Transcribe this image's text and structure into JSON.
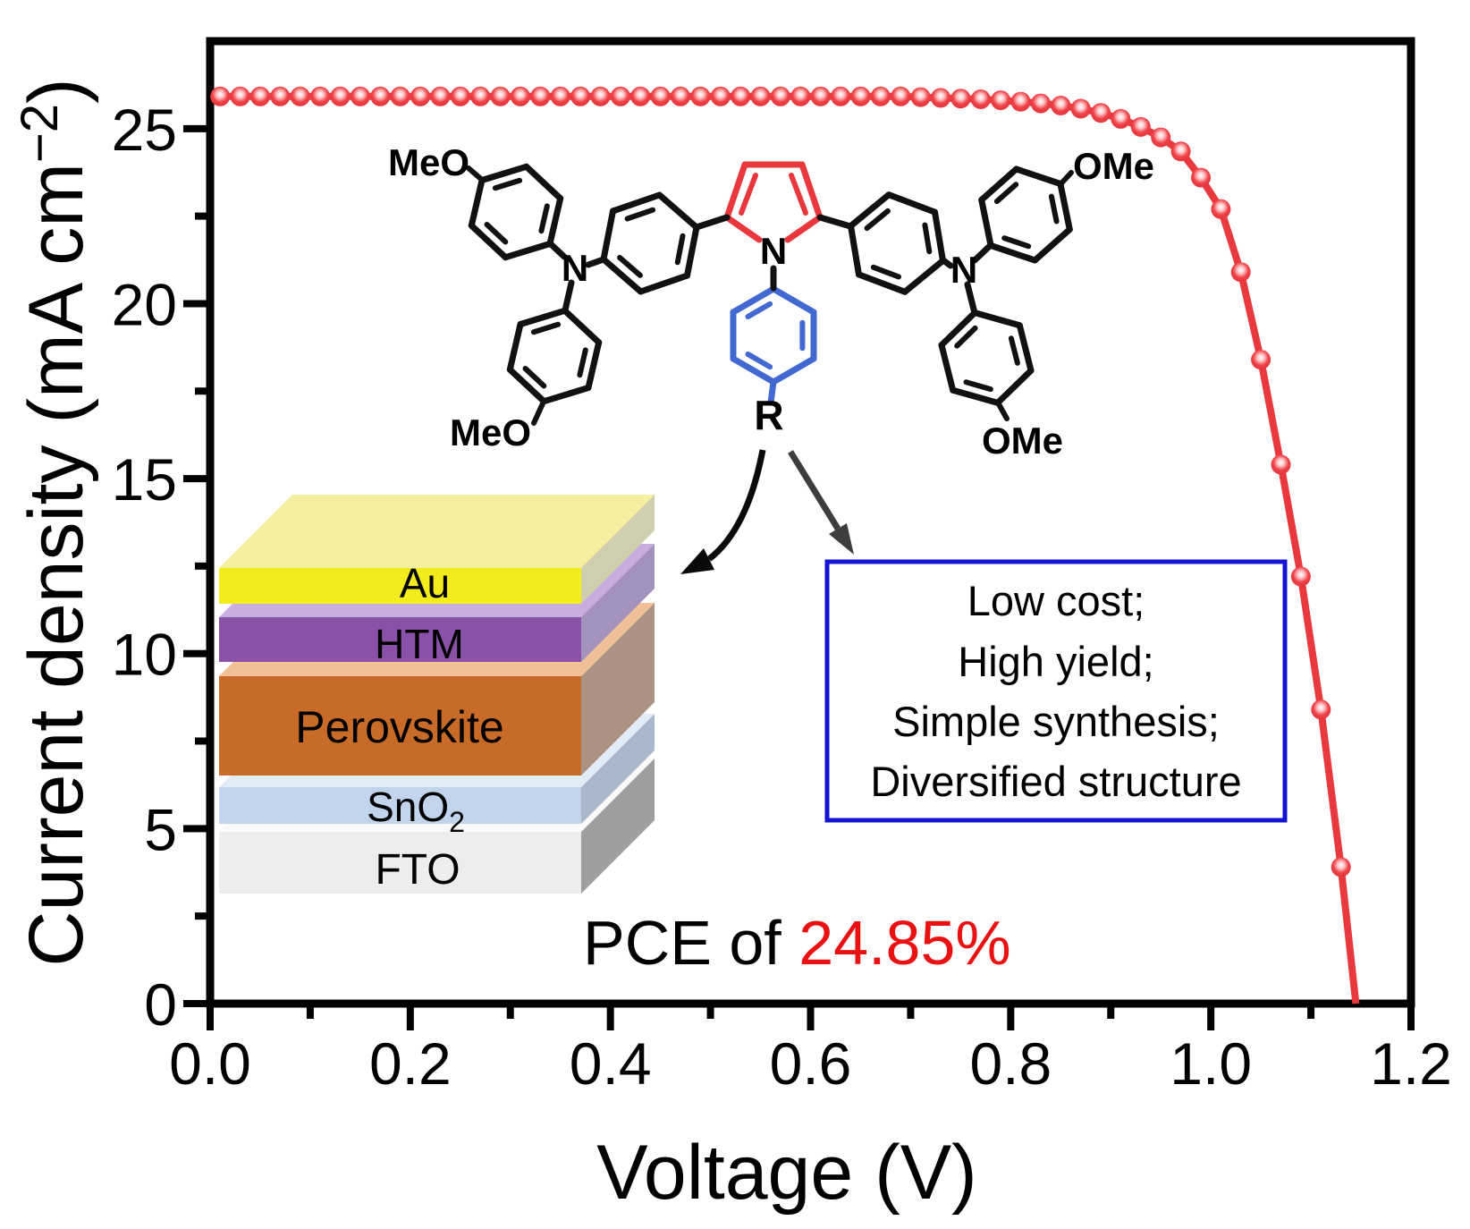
{
  "chart_data": {
    "type": "line",
    "title": "",
    "xlabel": "Voltage (V)",
    "ylabel": {
      "main": "Current density (mA cm",
      "sup": "−2",
      "close": ")"
    },
    "xlim": [
      0,
      1.2
    ],
    "ylim": [
      0,
      27.5
    ],
    "grid": false,
    "x_tick_labels": [
      "0.0",
      "0.2",
      "0.4",
      "0.6",
      "0.8",
      "1.0",
      "1.2"
    ],
    "x_tick_values": [
      0,
      0.2,
      0.4,
      0.6,
      0.8,
      1.0,
      1.2
    ],
    "x_minor_tick_values": [
      0.1,
      0.3,
      0.5,
      0.7,
      0.9,
      1.1
    ],
    "y_tick_labels": [
      "0",
      "5",
      "10",
      "15",
      "20",
      "25"
    ],
    "y_tick_values": [
      0,
      5,
      10,
      15,
      20,
      25
    ],
    "y_minor_tick_values": [
      2.5,
      7.5,
      12.5,
      17.5,
      22.5
    ],
    "series": [
      {
        "name": "J-V curve",
        "color": "#e8393e",
        "marker": "sphere",
        "jsc_ma_cm2": 25.92,
        "voc_v": 1.145,
        "points": [
          [
            0.01,
            25.92
          ],
          [
            0.03,
            25.92
          ],
          [
            0.05,
            25.92
          ],
          [
            0.07,
            25.92
          ],
          [
            0.09,
            25.92
          ],
          [
            0.11,
            25.92
          ],
          [
            0.13,
            25.92
          ],
          [
            0.15,
            25.92
          ],
          [
            0.17,
            25.92
          ],
          [
            0.19,
            25.92
          ],
          [
            0.21,
            25.92
          ],
          [
            0.23,
            25.92
          ],
          [
            0.25,
            25.92
          ],
          [
            0.27,
            25.92
          ],
          [
            0.29,
            25.92
          ],
          [
            0.31,
            25.92
          ],
          [
            0.33,
            25.92
          ],
          [
            0.35,
            25.92
          ],
          [
            0.37,
            25.92
          ],
          [
            0.39,
            25.92
          ],
          [
            0.41,
            25.92
          ],
          [
            0.43,
            25.92
          ],
          [
            0.45,
            25.92
          ],
          [
            0.47,
            25.92
          ],
          [
            0.49,
            25.92
          ],
          [
            0.51,
            25.92
          ],
          [
            0.53,
            25.92
          ],
          [
            0.55,
            25.92
          ],
          [
            0.57,
            25.92
          ],
          [
            0.59,
            25.92
          ],
          [
            0.61,
            25.92
          ],
          [
            0.63,
            25.92
          ],
          [
            0.65,
            25.92
          ],
          [
            0.67,
            25.92
          ],
          [
            0.69,
            25.92
          ],
          [
            0.71,
            25.9
          ],
          [
            0.73,
            25.88
          ],
          [
            0.75,
            25.86
          ],
          [
            0.77,
            25.84
          ],
          [
            0.79,
            25.81
          ],
          [
            0.81,
            25.77
          ],
          [
            0.83,
            25.72
          ],
          [
            0.85,
            25.66
          ],
          [
            0.87,
            25.57
          ],
          [
            0.89,
            25.45
          ],
          [
            0.91,
            25.28
          ],
          [
            0.93,
            25.05
          ],
          [
            0.95,
            24.75
          ],
          [
            0.97,
            24.35
          ],
          [
            0.99,
            23.6
          ],
          [
            1.01,
            22.7
          ],
          [
            1.03,
            20.9
          ],
          [
            1.05,
            18.4
          ],
          [
            1.07,
            15.4
          ],
          [
            1.09,
            12.2
          ],
          [
            1.11,
            8.4
          ],
          [
            1.13,
            3.9
          ],
          [
            1.145,
            0.0
          ]
        ]
      }
    ],
    "annotations": {
      "pce_prefix": "PCE of ",
      "pce_value": "24.85%",
      "pce_value_color": "#ea1112"
    }
  },
  "molecule": {
    "labels": {
      "meo_top_left": "MeO",
      "meo_bottom_left": "MeO",
      "ome_top_right": "OMe",
      "ome_bottom_right": "OMe",
      "n_left": "N",
      "n_right": "N",
      "n_pyrrole": "N",
      "r_group": "R"
    },
    "colors": {
      "skeleton": "#111111",
      "pyrrole": "#e8383d",
      "n_aryl_blue": "#4169d1"
    }
  },
  "device_stack": {
    "layers": [
      {
        "label": "Au",
        "front": "#f2ec1c",
        "top": "#f4f0a0",
        "side": "#cfcfae"
      },
      {
        "label": "HTM",
        "front": "#8a51a8",
        "top": "#c7aede",
        "side": "#a392bd"
      },
      {
        "label": "Perovskite",
        "front": "#c96b28",
        "top": "#f2c096",
        "side": "#ab9284"
      },
      {
        "label": "SnO",
        "label_sub": "2",
        "front": "#c2d4ec",
        "top": "#e2ecf7",
        "side": "#a9b8cc"
      },
      {
        "label": "FTO",
        "front": "#ededed",
        "top": "#fafafa",
        "side": "#9e9e9e"
      }
    ]
  },
  "callout_box": {
    "border_color": "#1414d6",
    "text_color": "#1414dd",
    "lines": [
      "Low cost;",
      "High yield;",
      "Simple synthesis;",
      "Diversified structure"
    ]
  }
}
